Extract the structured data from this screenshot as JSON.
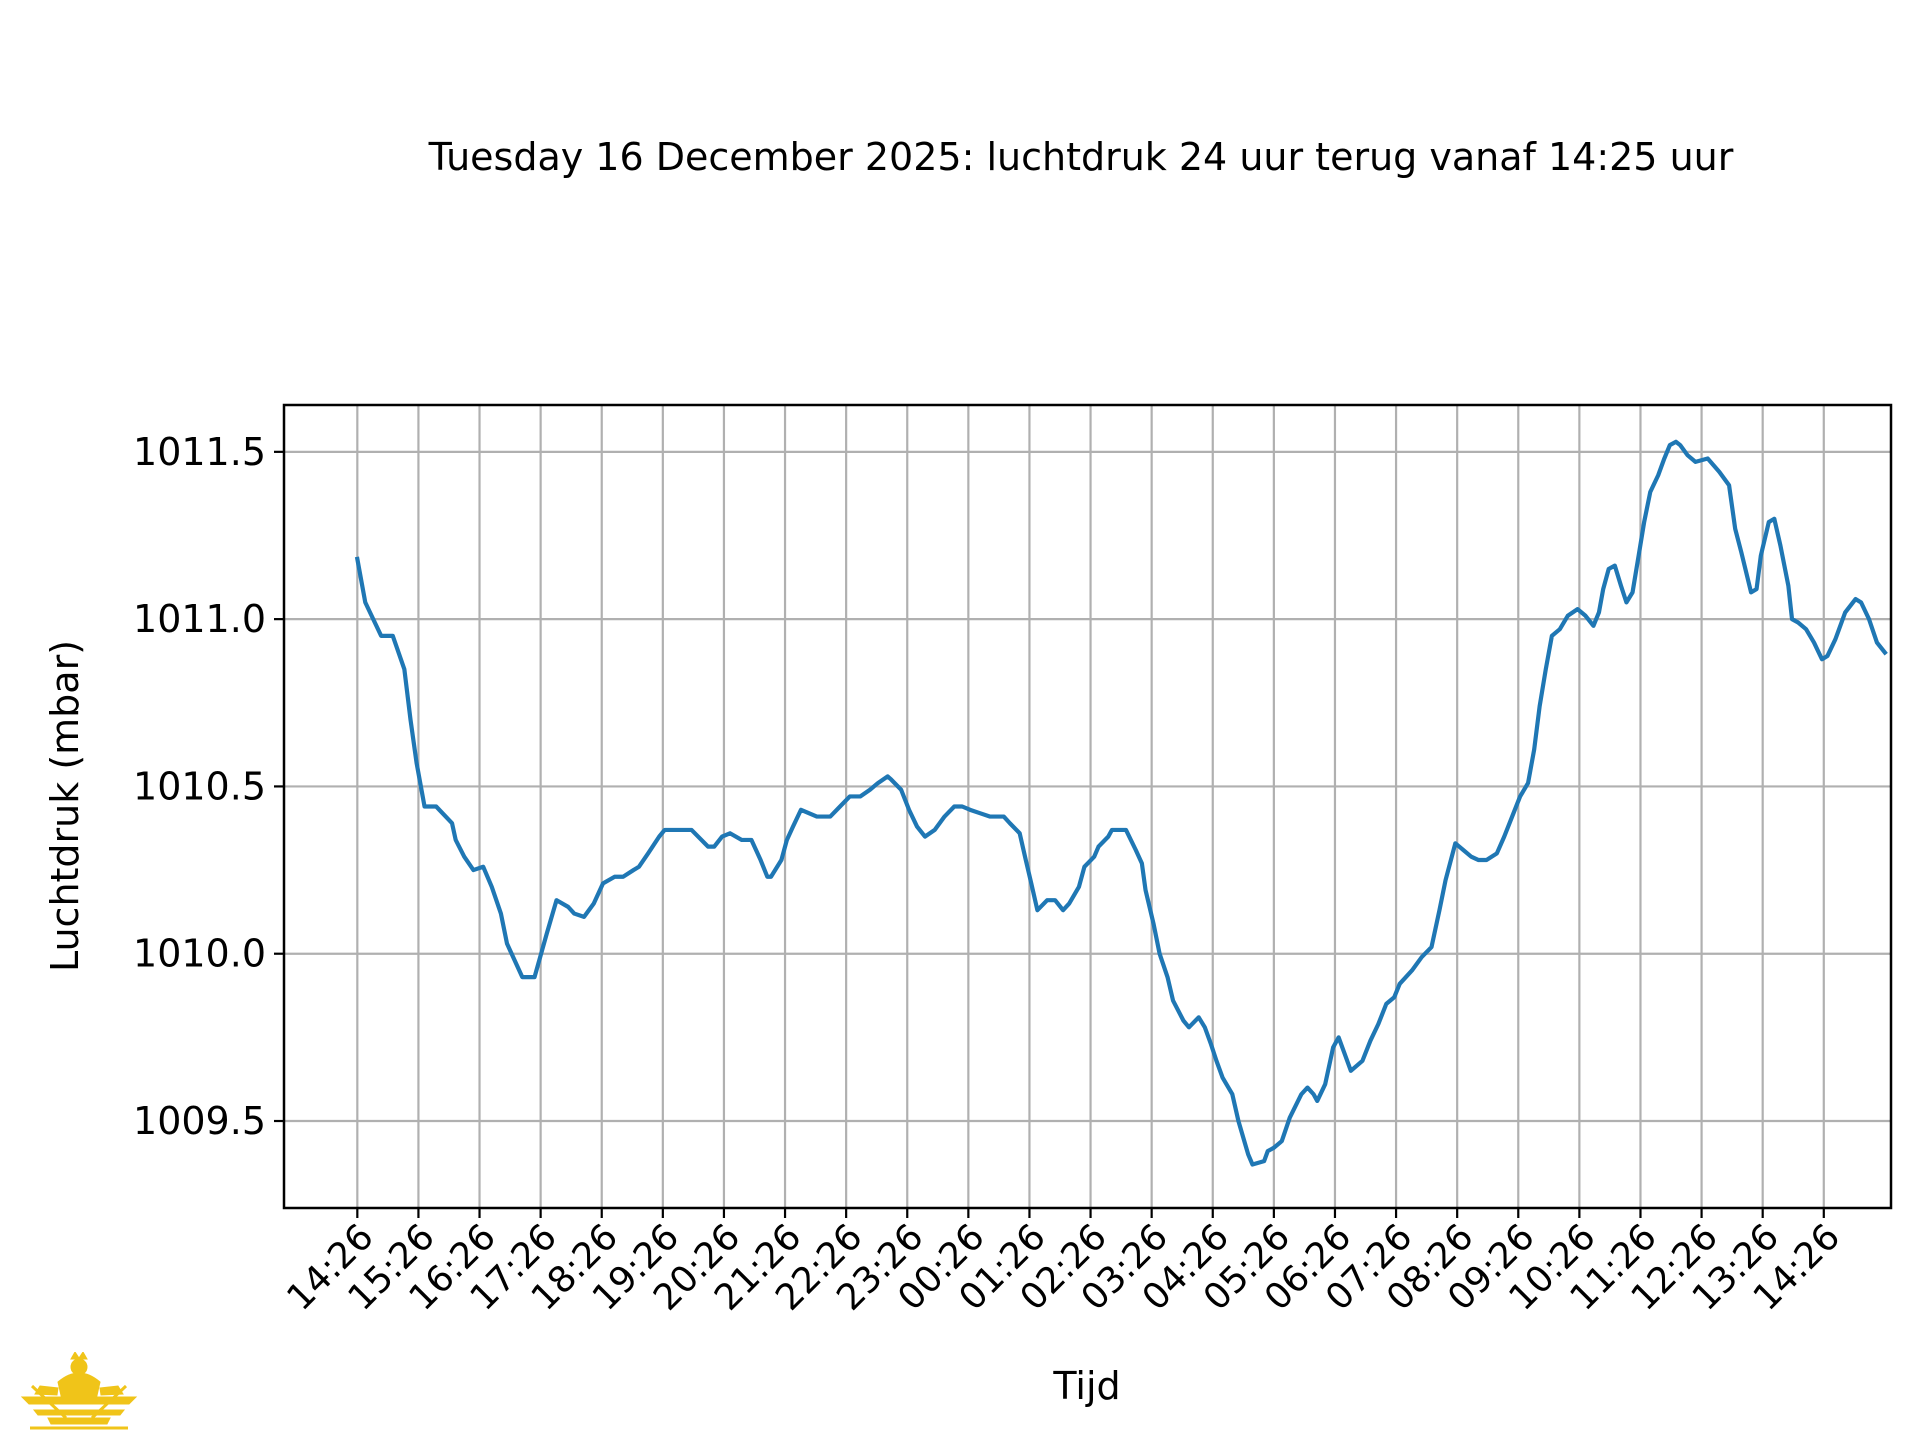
{
  "chart_data": {
    "type": "line",
    "title": "Tuesday 16 December 2025: luchtdruk 24 uur terug vanaf 14:25 uur",
    "xlabel": "Tijd",
    "ylabel": "Luchtdruk (mbar)",
    "x_ticks": [
      "14:26",
      "15:26",
      "16:26",
      "17:26",
      "18:26",
      "19:26",
      "20:26",
      "21:26",
      "22:26",
      "23:26",
      "00:26",
      "01:26",
      "02:26",
      "03:26",
      "04:26",
      "05:26",
      "06:26",
      "07:26",
      "08:26",
      "09:26",
      "10:26",
      "11:26",
      "12:26",
      "13:26",
      "14:26"
    ],
    "y_ticks": [
      "1009.5",
      "1010.0",
      "1010.5",
      "1011.0",
      "1011.5"
    ],
    "ylim": [
      1009.24,
      1011.64
    ],
    "xlim": [
      -1.2,
      25.1
    ],
    "grid": true,
    "series": [
      {
        "color": "#1f77b4",
        "points": [
          [
            0.0,
            1011.18
          ],
          [
            0.13,
            1011.05
          ],
          [
            0.26,
            1011.0
          ],
          [
            0.39,
            1010.95
          ],
          [
            0.58,
            1010.95
          ],
          [
            0.77,
            1010.85
          ],
          [
            0.87,
            1010.7
          ],
          [
            0.97,
            1010.57
          ],
          [
            1.1,
            1010.44
          ],
          [
            1.29,
            1010.44
          ],
          [
            1.55,
            1010.39
          ],
          [
            1.61,
            1010.34
          ],
          [
            1.75,
            1010.29
          ],
          [
            1.9,
            1010.25
          ],
          [
            2.06,
            1010.26
          ],
          [
            2.2,
            1010.2
          ],
          [
            2.35,
            1010.12
          ],
          [
            2.45,
            1010.03
          ],
          [
            2.7,
            1009.93
          ],
          [
            2.9,
            1009.93
          ],
          [
            3.1,
            1010.06
          ],
          [
            3.26,
            1010.16
          ],
          [
            3.45,
            1010.14
          ],
          [
            3.55,
            1010.12
          ],
          [
            3.71,
            1010.11
          ],
          [
            3.87,
            1010.15
          ],
          [
            4.02,
            1010.21
          ],
          [
            4.21,
            1010.23
          ],
          [
            4.35,
            1010.23
          ],
          [
            4.52,
            1010.25
          ],
          [
            4.61,
            1010.26
          ],
          [
            4.76,
            1010.3
          ],
          [
            4.94,
            1010.35
          ],
          [
            5.03,
            1010.37
          ],
          [
            5.32,
            1010.37
          ],
          [
            5.47,
            1010.37
          ],
          [
            5.74,
            1010.32
          ],
          [
            5.84,
            1010.32
          ],
          [
            5.97,
            1010.35
          ],
          [
            6.1,
            1010.36
          ],
          [
            6.29,
            1010.34
          ],
          [
            6.45,
            1010.34
          ],
          [
            6.6,
            1010.28
          ],
          [
            6.71,
            1010.23
          ],
          [
            6.77,
            1010.23
          ],
          [
            6.94,
            1010.28
          ],
          [
            7.03,
            1010.34
          ],
          [
            7.13,
            1010.38
          ],
          [
            7.26,
            1010.43
          ],
          [
            7.52,
            1010.41
          ],
          [
            7.61,
            1010.41
          ],
          [
            7.74,
            1010.41
          ],
          [
            7.9,
            1010.44
          ],
          [
            8.06,
            1010.47
          ],
          [
            8.23,
            1010.47
          ],
          [
            8.39,
            1010.49
          ],
          [
            8.52,
            1010.51
          ],
          [
            8.68,
            1010.53
          ],
          [
            8.74,
            1010.52
          ],
          [
            8.9,
            1010.49
          ],
          [
            9.03,
            1010.43
          ],
          [
            9.16,
            1010.38
          ],
          [
            9.29,
            1010.35
          ],
          [
            9.45,
            1010.37
          ],
          [
            9.61,
            1010.41
          ],
          [
            9.77,
            1010.44
          ],
          [
            9.9,
            1010.44
          ],
          [
            10.03,
            1010.43
          ],
          [
            10.19,
            1010.42
          ],
          [
            10.35,
            1010.41
          ],
          [
            10.52,
            1010.41
          ],
          [
            10.55,
            1010.41
          ],
          [
            10.58,
            1010.41
          ],
          [
            10.68,
            1010.39
          ],
          [
            10.84,
            1010.36
          ],
          [
            10.94,
            1010.28
          ],
          [
            11.03,
            1010.21
          ],
          [
            11.13,
            1010.13
          ],
          [
            11.29,
            1010.16
          ],
          [
            11.42,
            1010.16
          ],
          [
            11.55,
            1010.13
          ],
          [
            11.65,
            1010.15
          ],
          [
            11.81,
            1010.2
          ],
          [
            11.9,
            1010.26
          ],
          [
            12.06,
            1010.29
          ],
          [
            12.13,
            1010.32
          ],
          [
            12.29,
            1010.35
          ],
          [
            12.35,
            1010.37
          ],
          [
            12.48,
            1010.37
          ],
          [
            12.58,
            1010.37
          ],
          [
            12.74,
            1010.31
          ],
          [
            12.84,
            1010.27
          ],
          [
            12.9,
            1010.19
          ],
          [
            13.03,
            1010.09
          ],
          [
            13.13,
            1010.0
          ],
          [
            13.26,
            1009.93
          ],
          [
            13.35,
            1009.86
          ],
          [
            13.52,
            1009.8
          ],
          [
            13.61,
            1009.78
          ],
          [
            13.77,
            1009.81
          ],
          [
            13.87,
            1009.78
          ],
          [
            13.97,
            1009.73
          ],
          [
            14.06,
            1009.68
          ],
          [
            14.16,
            1009.63
          ],
          [
            14.32,
            1009.58
          ],
          [
            14.42,
            1009.5
          ],
          [
            14.58,
            1009.4
          ],
          [
            14.65,
            1009.37
          ],
          [
            14.84,
            1009.38
          ],
          [
            14.9,
            1009.41
          ],
          [
            15.0,
            1009.42
          ],
          [
            15.13,
            1009.44
          ],
          [
            15.26,
            1009.51
          ],
          [
            15.45,
            1009.58
          ],
          [
            15.55,
            1009.6
          ],
          [
            15.65,
            1009.58
          ],
          [
            15.71,
            1009.56
          ],
          [
            15.84,
            1009.61
          ],
          [
            15.97,
            1009.72
          ],
          [
            16.06,
            1009.75
          ],
          [
            16.16,
            1009.7
          ],
          [
            16.26,
            1009.65
          ],
          [
            16.45,
            1009.68
          ],
          [
            16.58,
            1009.74
          ],
          [
            16.71,
            1009.79
          ],
          [
            16.84,
            1009.85
          ],
          [
            16.97,
            1009.87
          ],
          [
            17.06,
            1009.91
          ],
          [
            17.26,
            1009.95
          ],
          [
            17.42,
            1009.99
          ],
          [
            17.58,
            1010.02
          ],
          [
            17.71,
            1010.13
          ],
          [
            17.81,
            1010.22
          ],
          [
            17.97,
            1010.33
          ],
          [
            18.1,
            1010.31
          ],
          [
            18.23,
            1010.29
          ],
          [
            18.35,
            1010.28
          ],
          [
            18.48,
            1010.28
          ],
          [
            18.65,
            1010.3
          ],
          [
            18.77,
            1010.35
          ],
          [
            18.9,
            1010.41
          ],
          [
            19.03,
            1010.47
          ],
          [
            19.16,
            1010.51
          ],
          [
            19.26,
            1010.61
          ],
          [
            19.35,
            1010.74
          ],
          [
            19.45,
            1010.85
          ],
          [
            19.55,
            1010.95
          ],
          [
            19.68,
            1010.97
          ],
          [
            19.81,
            1011.01
          ],
          [
            19.97,
            1011.03
          ],
          [
            20.1,
            1011.01
          ],
          [
            20.23,
            1010.98
          ],
          [
            20.32,
            1011.02
          ],
          [
            20.39,
            1011.09
          ],
          [
            20.48,
            1011.15
          ],
          [
            20.58,
            1011.16
          ],
          [
            20.68,
            1011.1
          ],
          [
            20.77,
            1011.05
          ],
          [
            20.87,
            1011.08
          ],
          [
            20.97,
            1011.19
          ],
          [
            21.06,
            1011.29
          ],
          [
            21.16,
            1011.38
          ],
          [
            21.29,
            1011.43
          ],
          [
            21.39,
            1011.48
          ],
          [
            21.48,
            1011.52
          ],
          [
            21.58,
            1011.53
          ],
          [
            21.65,
            1011.52
          ],
          [
            21.77,
            1011.49
          ],
          [
            21.9,
            1011.47
          ],
          [
            22.1,
            1011.48
          ],
          [
            22.29,
            1011.44
          ],
          [
            22.45,
            1011.4
          ],
          [
            22.55,
            1011.27
          ],
          [
            22.65,
            1011.2
          ],
          [
            22.81,
            1011.08
          ],
          [
            22.9,
            1011.09
          ],
          [
            22.97,
            1011.19
          ],
          [
            23.1,
            1011.29
          ],
          [
            23.19,
            1011.3
          ],
          [
            23.29,
            1011.22
          ],
          [
            23.42,
            1011.1
          ],
          [
            23.48,
            1011.0
          ],
          [
            23.58,
            1010.99
          ],
          [
            23.71,
            1010.97
          ],
          [
            23.84,
            1010.93
          ],
          [
            23.97,
            1010.88
          ],
          [
            24.06,
            1010.89
          ],
          [
            24.19,
            1010.94
          ],
          [
            24.35,
            1011.02
          ],
          [
            24.52,
            1011.06
          ],
          [
            24.61,
            1011.05
          ],
          [
            24.74,
            1011.0
          ],
          [
            24.87,
            1010.93
          ],
          [
            25.0,
            1010.9
          ]
        ]
      }
    ]
  },
  "logo": {
    "name": "crest-logo",
    "color": "#f0c419"
  }
}
